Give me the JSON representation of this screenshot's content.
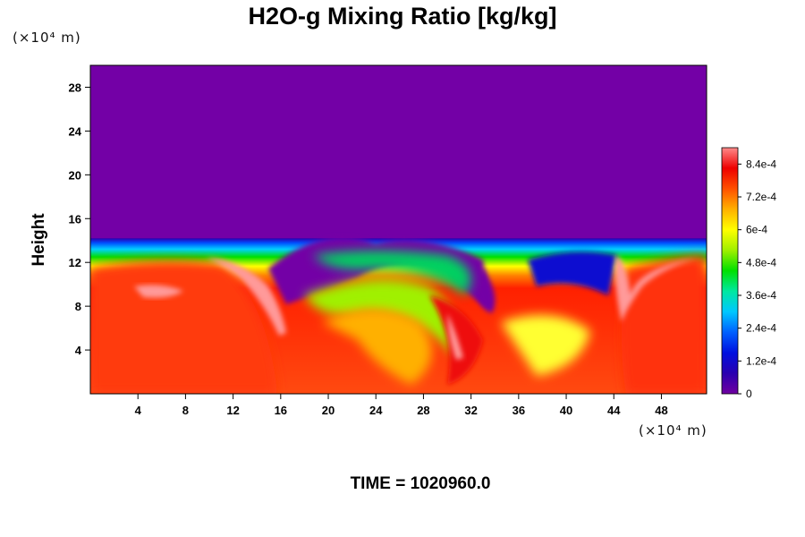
{
  "chart_data": {
    "type": "heatmap",
    "title": "H2O-g Mixing Ratio [kg/kg]",
    "ylabel": "Height",
    "xlabel": "",
    "x_unit": "(×10⁴ m)",
    "y_unit": "(×10⁴ m)",
    "xlim": [
      0,
      51.8
    ],
    "ylim": [
      0,
      30
    ],
    "x_ticks": [
      4,
      8,
      12,
      16,
      20,
      24,
      28,
      32,
      36,
      40,
      44,
      48
    ],
    "y_ticks": [
      4,
      8,
      12,
      16,
      20,
      24,
      28
    ],
    "colorbar": {
      "min": 0,
      "max": 0.0009,
      "labels": [
        "0",
        "1.2e-4",
        "2.4e-4",
        "3.6e-4",
        "4.8e-4",
        "6e-4",
        "7.2e-4",
        "8.4e-4"
      ],
      "label_values": [
        0,
        0.00012,
        0.00024,
        0.00036,
        0.00048,
        0.0006,
        0.00072,
        0.00084
      ]
    },
    "moist_layer_top": 14.2,
    "footer": "TIME = 1020960.0"
  },
  "colors": {
    "dry": "#7300a6",
    "ramp": [
      "#7000a0",
      "#2a00b0",
      "#0010e0",
      "#0060ff",
      "#00c8ff",
      "#00e8a0",
      "#00e000",
      "#a0f000",
      "#ffff00",
      "#ffb000",
      "#ff5000",
      "#ee0000",
      "#ff8a8a"
    ]
  }
}
